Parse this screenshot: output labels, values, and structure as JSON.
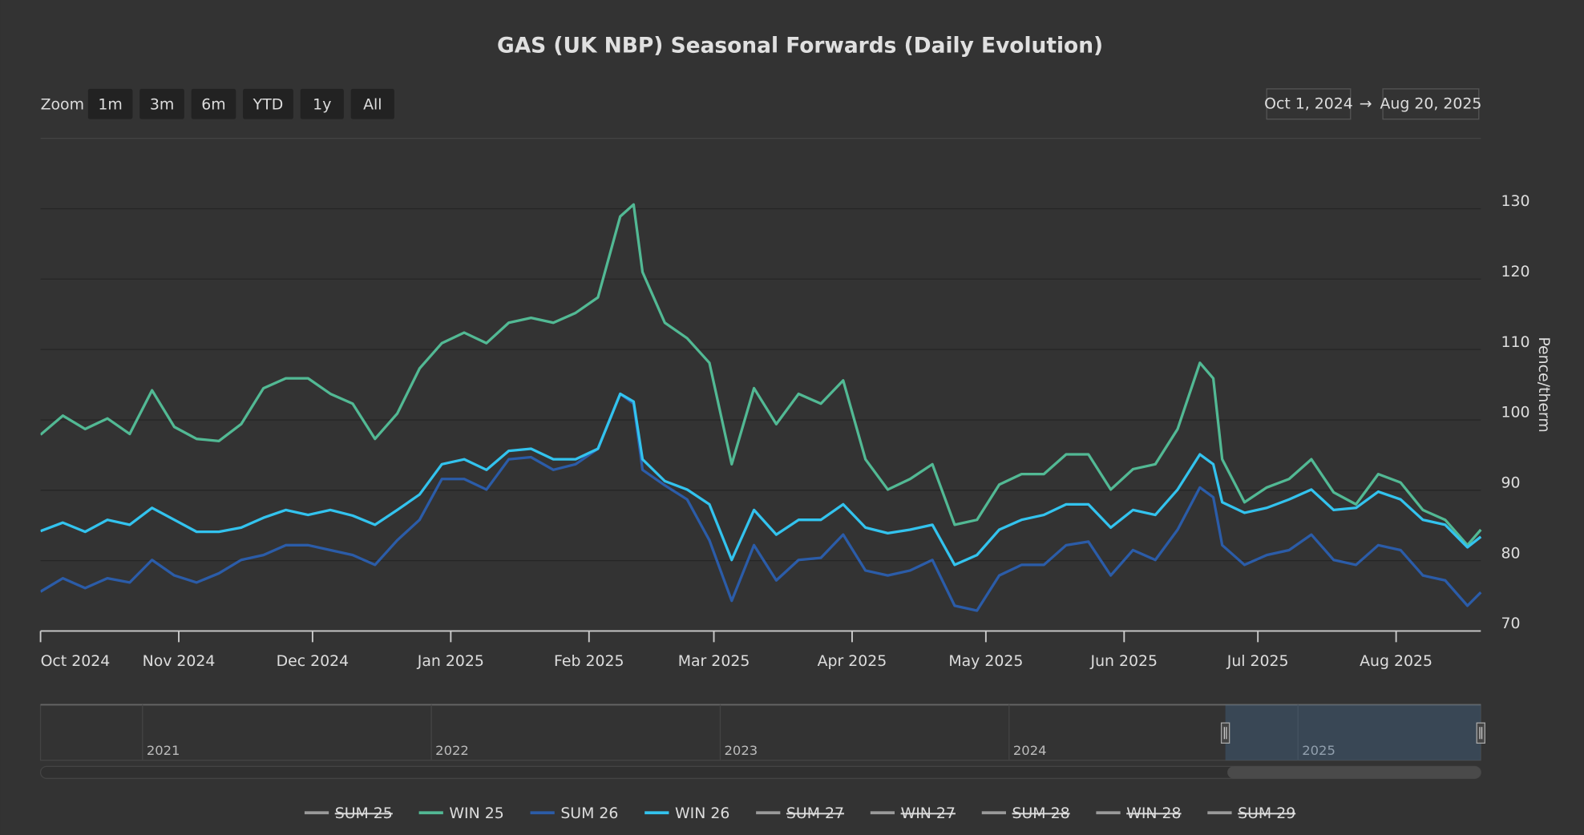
{
  "chart_data": {
    "type": "line",
    "title": "GAS (UK NBP) Seasonal Forwards (Daily Evolution)",
    "y_label": "Pence/therm",
    "range_selector": {
      "zoom_label": "Zoom",
      "buttons": [
        "1m",
        "3m",
        "6m",
        "YTD",
        "1y",
        "All"
      ],
      "from": "Oct 1, 2024",
      "arrow": "→",
      "to": "Aug 20, 2025"
    },
    "x": [
      "2024-10-01",
      "2024-10-06",
      "2024-10-11",
      "2024-10-16",
      "2024-10-21",
      "2024-10-26",
      "2024-10-31",
      "2024-11-05",
      "2024-11-10",
      "2024-11-15",
      "2024-11-20",
      "2024-11-25",
      "2024-11-30",
      "2024-12-05",
      "2024-12-10",
      "2024-12-15",
      "2024-12-20",
      "2024-12-25",
      "2024-12-30",
      "2025-01-04",
      "2025-01-09",
      "2025-01-14",
      "2025-01-19",
      "2025-01-24",
      "2025-01-29",
      "2025-02-03",
      "2025-02-08",
      "2025-02-11",
      "2025-02-13",
      "2025-02-18",
      "2025-02-23",
      "2025-02-28",
      "2025-03-05",
      "2025-03-10",
      "2025-03-15",
      "2025-03-20",
      "2025-03-25",
      "2025-03-30",
      "2025-04-04",
      "2025-04-09",
      "2025-04-14",
      "2025-04-19",
      "2025-04-24",
      "2025-04-29",
      "2025-05-04",
      "2025-05-09",
      "2025-05-14",
      "2025-05-19",
      "2025-05-24",
      "2025-05-29",
      "2025-06-03",
      "2025-06-08",
      "2025-06-13",
      "2025-06-18",
      "2025-06-21",
      "2025-06-23",
      "2025-06-28",
      "2025-07-03",
      "2025-07-08",
      "2025-07-13",
      "2025-07-18",
      "2025-07-23",
      "2025-07-28",
      "2025-08-02",
      "2025-08-07",
      "2025-08-12",
      "2025-08-17",
      "2025-08-20"
    ],
    "xlim": [
      "2024-10-01",
      "2025-08-20"
    ],
    "xticks": [
      {
        "value": "2024-10-01",
        "label": "Oct 2024"
      },
      {
        "value": "2024-11-01",
        "label": "Nov 2024"
      },
      {
        "value": "2024-12-01",
        "label": "Dec 2024"
      },
      {
        "value": "2025-01-01",
        "label": "Jan 2025"
      },
      {
        "value": "2025-02-01",
        "label": "Feb 2025"
      },
      {
        "value": "2025-03-01",
        "label": "Mar 2025"
      },
      {
        "value": "2025-04-01",
        "label": "Apr 2025"
      },
      {
        "value": "2025-05-01",
        "label": "May 2025"
      },
      {
        "value": "2025-06-01",
        "label": "Jun 2025"
      },
      {
        "value": "2025-07-01",
        "label": "Jul 2025"
      },
      {
        "value": "2025-08-01",
        "label": "Aug 2025"
      }
    ],
    "ylim": [
      70,
      140
    ],
    "yticks": [
      70,
      80,
      90,
      100,
      110,
      120,
      130
    ],
    "grid": true,
    "series": [
      {
        "name": "SUM 25",
        "visible": false
      },
      {
        "name": "WIN 25",
        "visible": true,
        "color": "#52b994",
        "values": [
          97.9,
          100.6,
          98.7,
          100.2,
          98.0,
          104.2,
          99.0,
          97.3,
          97.0,
          99.4,
          104.5,
          105.9,
          105.9,
          103.7,
          102.3,
          97.3,
          100.9,
          107.3,
          110.9,
          112.4,
          110.9,
          113.8,
          114.5,
          113.8,
          115.2,
          117.4,
          128.9,
          130.6,
          121.0,
          113.8,
          111.6,
          108.1,
          93.7,
          104.5,
          99.4,
          103.7,
          102.3,
          105.6,
          94.4,
          90.1,
          91.6,
          93.7,
          85.1,
          85.8,
          90.8,
          92.3,
          92.3,
          95.1,
          95.1,
          90.1,
          93.0,
          93.7,
          98.7,
          108.1,
          105.9,
          94.4,
          88.3,
          90.4,
          91.6,
          94.4,
          89.7,
          88.0,
          92.3,
          91.1,
          87.2,
          85.8,
          82.2,
          84.4
        ]
      },
      {
        "name": "SUM 26",
        "visible": true,
        "color": "#2b5ca8",
        "values": [
          75.6,
          77.5,
          76.1,
          77.5,
          76.9,
          80.1,
          77.9,
          76.9,
          78.2,
          80.1,
          80.8,
          82.2,
          82.2,
          81.5,
          80.8,
          79.4,
          82.9,
          85.8,
          91.6,
          91.6,
          90.1,
          94.4,
          94.7,
          92.9,
          93.7,
          95.9,
          103.7,
          102.3,
          92.9,
          90.7,
          88.7,
          82.9,
          74.3,
          82.2,
          77.2,
          80.1,
          80.4,
          83.7,
          78.6,
          77.9,
          78.6,
          80.1,
          73.6,
          72.9,
          77.9,
          79.4,
          79.4,
          82.2,
          82.7,
          77.9,
          81.5,
          80.1,
          84.4,
          90.4,
          89.0,
          82.2,
          79.4,
          80.8,
          81.5,
          83.7,
          80.1,
          79.4,
          82.2,
          81.5,
          77.9,
          77.2,
          73.6,
          75.5
        ]
      },
      {
        "name": "WIN 26",
        "visible": true,
        "color": "#33c3ee",
        "values": [
          84.2,
          85.4,
          84.1,
          85.8,
          85.1,
          87.5,
          85.8,
          84.1,
          84.1,
          84.7,
          86.1,
          87.2,
          86.5,
          87.2,
          86.4,
          85.1,
          87.2,
          89.4,
          93.7,
          94.4,
          92.9,
          95.6,
          95.9,
          94.4,
          94.4,
          95.9,
          103.7,
          102.6,
          94.4,
          91.3,
          90.1,
          88.0,
          80.1,
          87.2,
          83.7,
          85.8,
          85.8,
          88.0,
          84.7,
          83.9,
          84.4,
          85.1,
          79.4,
          80.8,
          84.4,
          85.8,
          86.5,
          88.0,
          88.0,
          84.7,
          87.2,
          86.5,
          90.1,
          95.1,
          93.7,
          88.3,
          86.8,
          87.5,
          88.7,
          90.1,
          87.2,
          87.5,
          89.8,
          88.7,
          85.8,
          85.1,
          81.9,
          83.4
        ]
      },
      {
        "name": "SUM 27",
        "visible": false
      },
      {
        "name": "WIN 27",
        "visible": false
      },
      {
        "name": "SUM 28",
        "visible": false
      },
      {
        "name": "WIN 28",
        "visible": false
      },
      {
        "name": "SUM 29",
        "visible": false
      }
    ],
    "navigator": {
      "xlim": [
        2020.647,
        2025.633
      ],
      "xticks": [
        2021,
        2022,
        2023,
        2024,
        2025
      ]
    }
  }
}
